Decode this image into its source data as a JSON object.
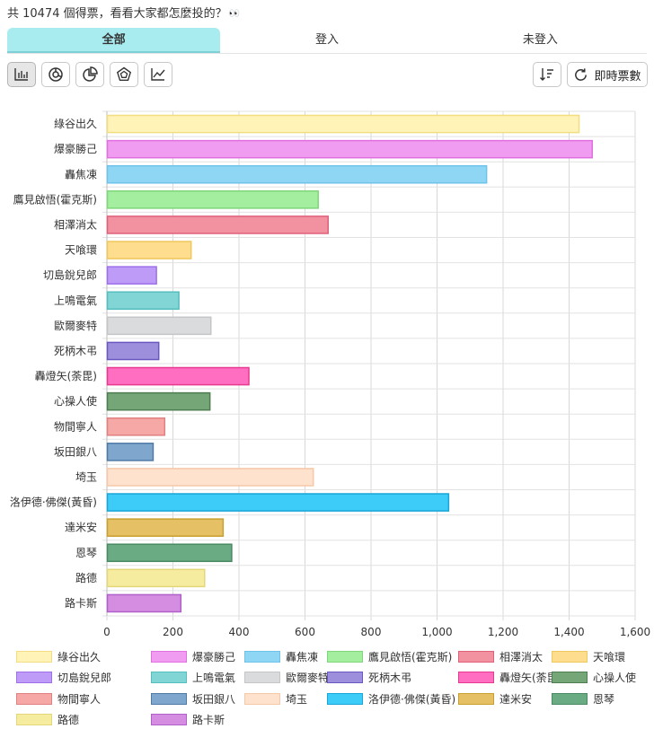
{
  "header": {
    "text": "共 10474 個得票，看看大家都怎麼投的？",
    "emoji": "👀"
  },
  "tabs": [
    {
      "label": "全部",
      "active": true
    },
    {
      "label": "登入",
      "active": false
    },
    {
      "label": "未登入",
      "active": false
    }
  ],
  "toolbar": {
    "view_buttons": [
      {
        "icon": "bar-chart-icon",
        "active": true
      },
      {
        "icon": "donut-chart-icon",
        "active": false
      },
      {
        "icon": "pie-chart-icon",
        "active": false
      },
      {
        "icon": "radar-chart-icon",
        "active": false
      },
      {
        "icon": "line-chart-icon",
        "active": false
      }
    ],
    "sort_icon": "sort-icon",
    "realtime_label": "即時票數",
    "realtime_icon": "refresh-icon"
  },
  "chart_data": {
    "type": "bar",
    "orientation": "horizontal",
    "categories": [
      "綠谷出久",
      "爆豪勝己",
      "轟焦凍",
      "鷹見啟悟(霍克斯)",
      "相澤消太",
      "天喰環",
      "切島銳兒郎",
      "上鳴電氣",
      "歐爾麥特",
      "死柄木弔",
      "轟燈矢(荼毘)",
      "心操人使",
      "物間寧人",
      "坂田銀八",
      "埼玉",
      "洛伊德·佛傑(黃昏)",
      "達米安",
      "恩琴",
      "路德",
      "路卡斯"
    ],
    "values": [
      1430,
      1470,
      1150,
      640,
      670,
      255,
      150,
      218,
      315,
      157,
      430,
      312,
      175,
      140,
      625,
      1035,
      352,
      378,
      296,
      224
    ],
    "colors": [
      "#fff3b8",
      "#f09cf0",
      "#8fd6f5",
      "#a3ee9f",
      "#f2919f",
      "#ffdd8f",
      "#be9bf7",
      "#82d5d5",
      "#dadbdc",
      "#9d8fdc",
      "#ff6ec0",
      "#74a677",
      "#f6a8a6",
      "#7fa6cc",
      "#ffe2cd",
      "#3dcbf7",
      "#e5c064",
      "#6aab84",
      "#f6ec9f",
      "#d48de0"
    ],
    "borders": [
      "#f2dd80",
      "#e070e0",
      "#6fc3ea",
      "#7fd77a",
      "#e0607a",
      "#f0c75c",
      "#9d70ea",
      "#55bebe",
      "#c4c5c6",
      "#6a58c0",
      "#e6398f",
      "#4e7d52",
      "#e08080",
      "#4f7aa6",
      "#f5c8a8",
      "#1aa6d6",
      "#c9a030",
      "#4a8a62",
      "#e4d77a",
      "#b060c8"
    ],
    "xticks": [
      "0",
      "200",
      "400",
      "600",
      "800",
      "1,000",
      "1,200",
      "1,400",
      "1,600"
    ],
    "xlim": [
      0,
      1600
    ],
    "grid": true,
    "legend_position": "bottom"
  }
}
